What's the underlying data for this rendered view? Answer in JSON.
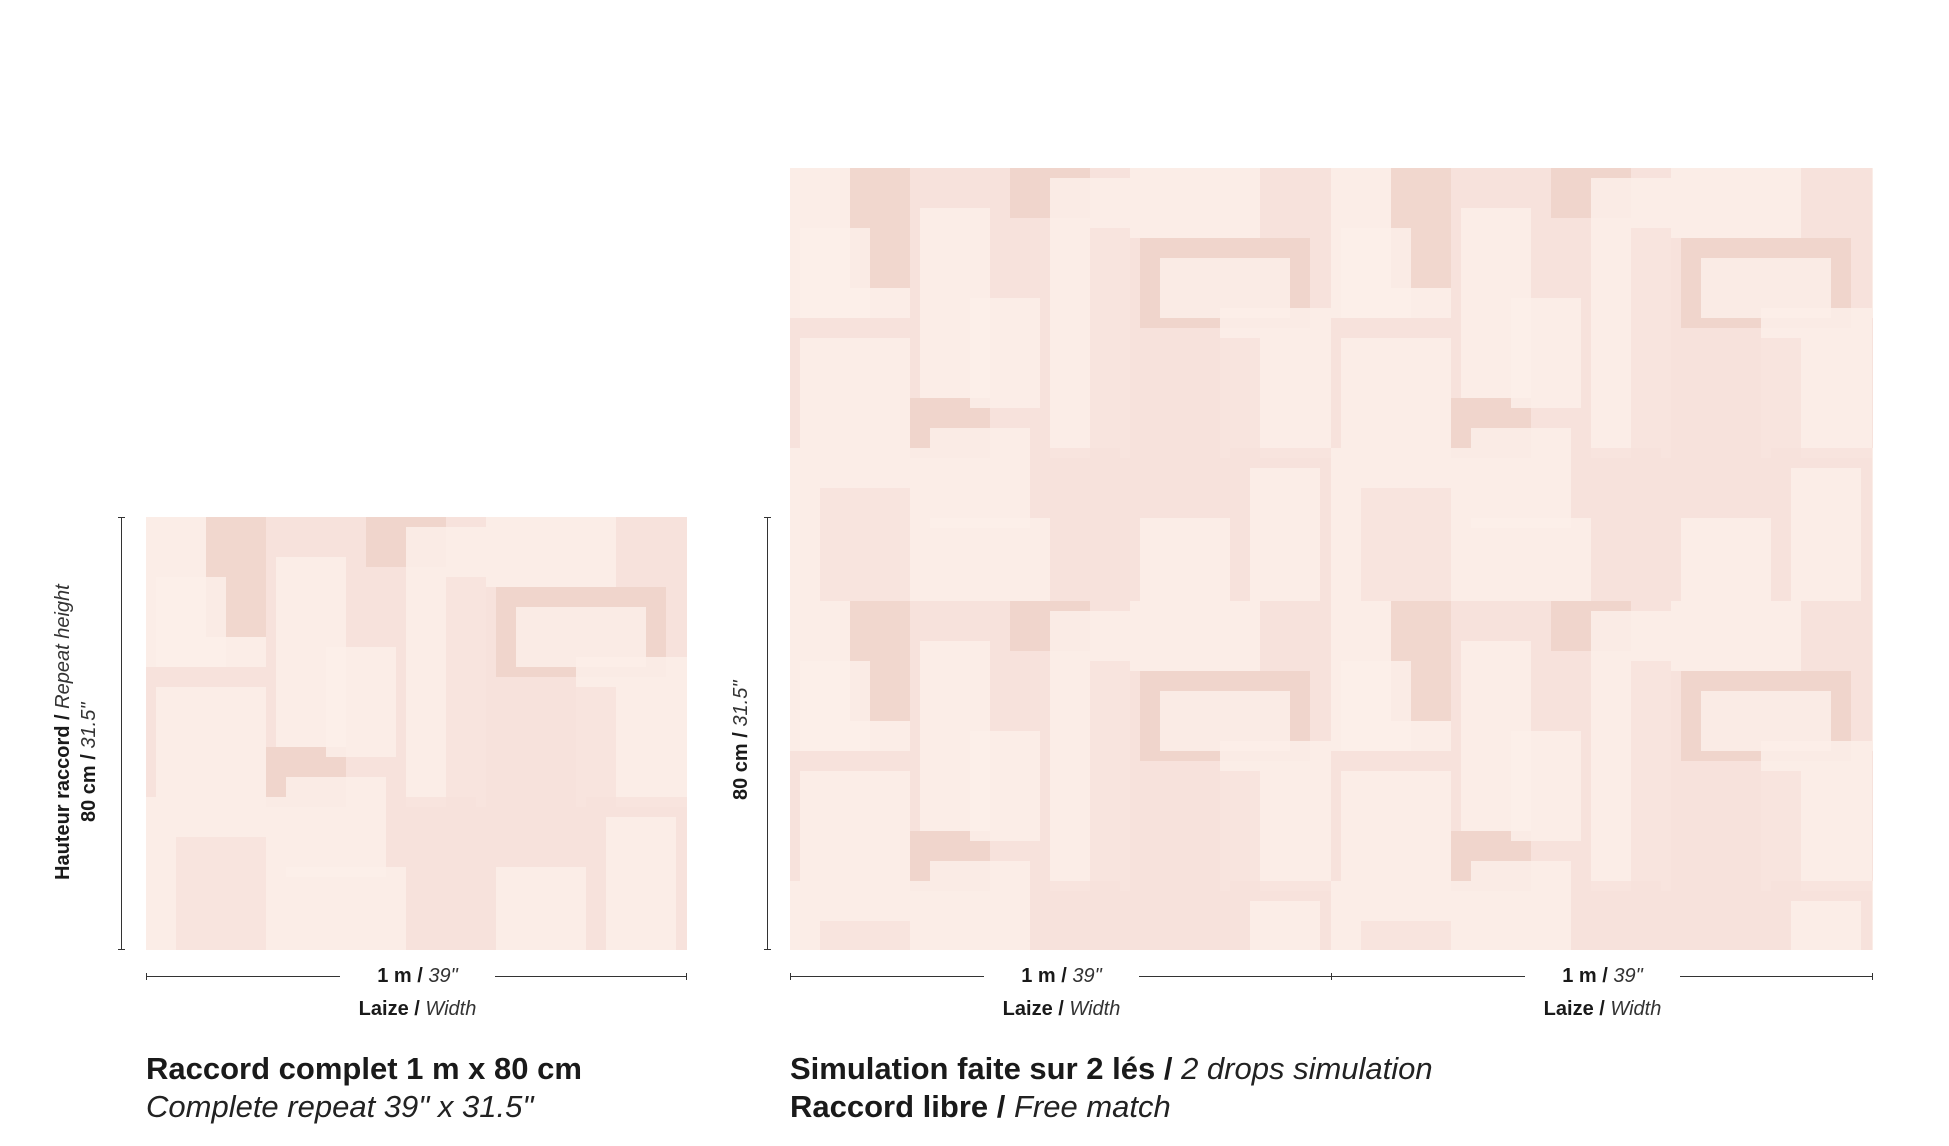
{
  "colors": {
    "tile_base": "#f7e2dc",
    "tile_light": "#fbeee9",
    "tile_dark": "#efd2c9",
    "line": "#333333"
  },
  "left": {
    "width_value": "1 m /",
    "width_imperial": "39\"",
    "width_label": "Laize /",
    "width_label_en": "Width",
    "height_label": "Hauteur raccord /",
    "height_label_en": "Repeat height",
    "height_value": "80 cm /",
    "height_imperial": "31.5\"",
    "caption_line1": "Raccord complet 1 m x 80 cm",
    "caption_line2": "Complete repeat 39\" x 31.5\""
  },
  "right": {
    "drops": [
      {
        "width_value": "1 m /",
        "width_imperial": "39\"",
        "width_label": "Laize /",
        "width_label_en": "Width"
      },
      {
        "width_value": "1 m /",
        "width_imperial": "39\"",
        "width_label": "Laize /",
        "width_label_en": "Width"
      }
    ],
    "height_value": "80 cm /",
    "height_imperial": "31.5\"",
    "caption_line1_fr": "Simulation faite sur 2 lés /",
    "caption_line1_en": "2 drops simulation",
    "caption_line2_fr": "Raccord libre /",
    "caption_line2_en": "Free match"
  }
}
